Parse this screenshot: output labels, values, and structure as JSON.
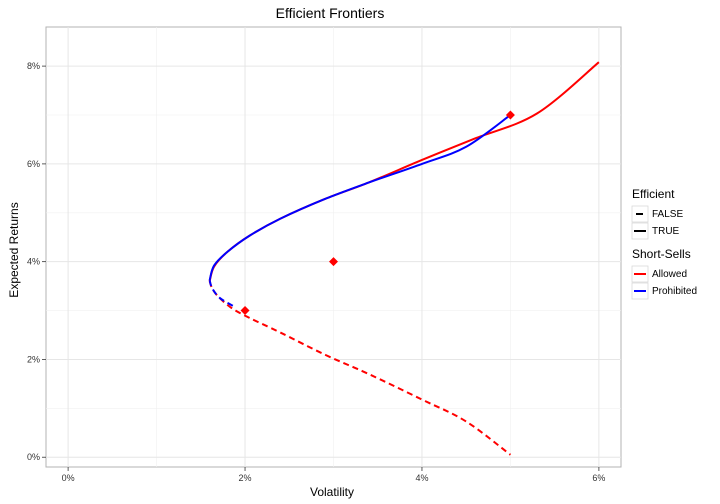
{
  "chart_data": {
    "type": "line",
    "title": "Efficient Frontiers",
    "xlabel": "Volatility",
    "ylabel": "Expected Returns",
    "xlim": [
      -0.0025,
      0.0625
    ],
    "ylim": [
      -0.002,
      0.088
    ],
    "x_ticks": [
      {
        "value": 0.0,
        "label": "0%"
      },
      {
        "value": 0.02,
        "label": "2%"
      },
      {
        "value": 0.04,
        "label": "4%"
      },
      {
        "value": 0.06,
        "label": "6%"
      }
    ],
    "y_ticks": [
      {
        "value": 0.0,
        "label": "0%"
      },
      {
        "value": 0.02,
        "label": "2%"
      },
      {
        "value": 0.04,
        "label": "4%"
      },
      {
        "value": 0.06,
        "label": "6%"
      },
      {
        "value": 0.08,
        "label": "8%"
      }
    ],
    "grid": true,
    "legend_position": "right",
    "legends": [
      {
        "title": "Efficient",
        "entries": [
          {
            "label": "FALSE",
            "style": "dashed"
          },
          {
            "label": "TRUE",
            "style": "solid"
          }
        ]
      },
      {
        "title": "Short-Sells",
        "entries": [
          {
            "label": "Allowed",
            "color": "#ff0000"
          },
          {
            "label": "Prohibited",
            "color": "#0000ff"
          }
        ]
      }
    ],
    "series": [
      {
        "group": "Allowed",
        "efficient": "FALSE",
        "color": "#ff0000",
        "dash": true,
        "points": [
          [
            0.016,
            0.036
          ],
          [
            0.0163,
            0.0345
          ],
          [
            0.017,
            0.0328
          ],
          [
            0.0185,
            0.0305
          ],
          [
            0.0205,
            0.0285
          ],
          [
            0.024,
            0.0255
          ],
          [
            0.029,
            0.021
          ],
          [
            0.034,
            0.017
          ],
          [
            0.04,
            0.0118
          ],
          [
            0.045,
            0.0073
          ],
          [
            0.05,
            0.0005
          ]
        ]
      },
      {
        "group": "Allowed",
        "efficient": "TRUE",
        "color": "#ff0000",
        "dash": false,
        "points": [
          [
            0.016,
            0.036
          ],
          [
            0.0165,
            0.039
          ],
          [
            0.018,
            0.042
          ],
          [
            0.0205,
            0.0453
          ],
          [
            0.024,
            0.0488
          ],
          [
            0.029,
            0.0528
          ],
          [
            0.034,
            0.0562
          ],
          [
            0.04,
            0.0608
          ],
          [
            0.046,
            0.0652
          ],
          [
            0.053,
            0.0703
          ],
          [
            0.06,
            0.0808
          ]
        ]
      },
      {
        "group": "Prohibited",
        "efficient": "FALSE",
        "color": "#0000ff",
        "dash": true,
        "points": [
          [
            0.016,
            0.0362
          ],
          [
            0.0163,
            0.0345
          ],
          [
            0.0172,
            0.0325
          ],
          [
            0.0188,
            0.0308
          ]
        ]
      },
      {
        "group": "Prohibited",
        "efficient": "TRUE",
        "color": "#0000ff",
        "dash": false,
        "points": [
          [
            0.016,
            0.0362
          ],
          [
            0.0165,
            0.0392
          ],
          [
            0.018,
            0.042
          ],
          [
            0.0205,
            0.0453
          ],
          [
            0.024,
            0.0488
          ],
          [
            0.029,
            0.0528
          ],
          [
            0.034,
            0.0562
          ],
          [
            0.04,
            0.06
          ],
          [
            0.045,
            0.0635
          ],
          [
            0.05,
            0.07
          ]
        ]
      }
    ],
    "markers": [
      {
        "x": 0.02,
        "y": 0.03,
        "color": "#ff0000"
      },
      {
        "x": 0.03,
        "y": 0.04,
        "color": "#ff0000"
      },
      {
        "x": 0.05,
        "y": 0.07,
        "color": "#ff0000"
      }
    ]
  }
}
